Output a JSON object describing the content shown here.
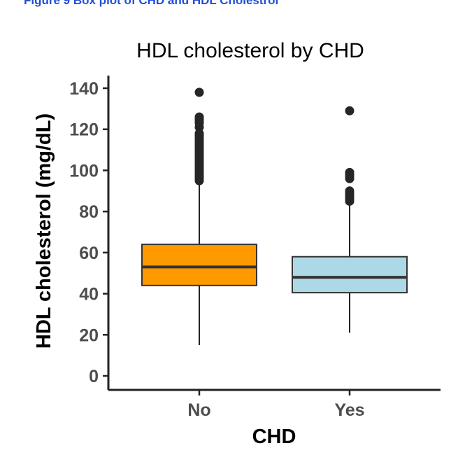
{
  "caption": "Figure 9 Box plot of CHD and HDL Cholestrol",
  "chart_data": {
    "type": "box",
    "title": "HDL cholesterol by CHD",
    "xlabel": "CHD",
    "ylabel": "HDL cholesterol (mg/dL)",
    "ylim": [
      -5,
      146
    ],
    "yticks": [
      0,
      20,
      40,
      60,
      80,
      100,
      120,
      140
    ],
    "categories": [
      "No",
      "Yes"
    ],
    "boxes": [
      {
        "category": "No",
        "fill": "#ff9900",
        "whisker_low": 15,
        "q1": 44,
        "median": 53,
        "q3": 64,
        "whisker_high": 94,
        "outliers": [
          95,
          96,
          97,
          98,
          99,
          100,
          101,
          102,
          103,
          104,
          105,
          106,
          107,
          108,
          109,
          110,
          111,
          112,
          113,
          114,
          115,
          116,
          117,
          118,
          121,
          123,
          124,
          125,
          126,
          138
        ]
      },
      {
        "category": "Yes",
        "fill": "#add8e6",
        "whisker_low": 21,
        "q1": 40.5,
        "median": 48,
        "q3": 58,
        "whisker_high": 84,
        "outliers": [
          85,
          86,
          87,
          88,
          89,
          90,
          96,
          97,
          98,
          99,
          129
        ]
      }
    ],
    "grid": false,
    "legend": "none"
  }
}
